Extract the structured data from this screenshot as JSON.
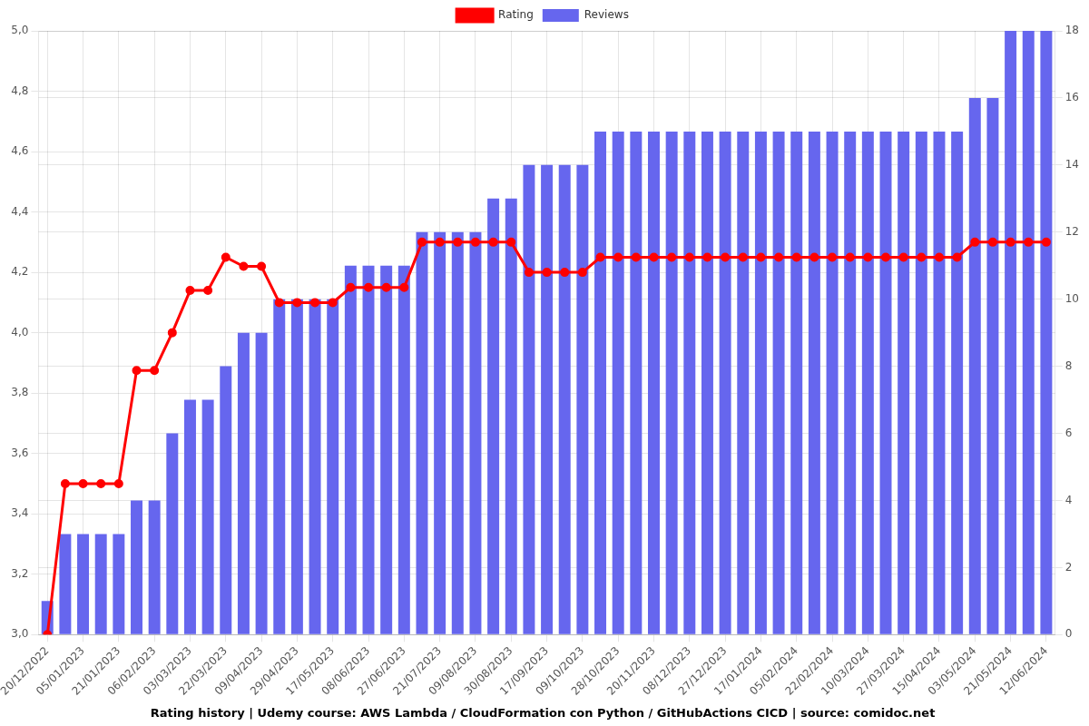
{
  "chart_data": {
    "type": "bar",
    "title": "Rating history | Udemy course: AWS Lambda / CloudFormation con Python / GitHubActions CICD | source: comidoc.net",
    "categories": [
      "20/12/2022",
      null,
      "05/01/2023",
      null,
      "21/01/2023",
      null,
      "06/02/2023",
      null,
      "03/03/2023",
      null,
      "22/03/2023",
      null,
      "09/04/2023",
      null,
      "29/04/2023",
      null,
      "17/05/2023",
      null,
      "08/06/2023",
      null,
      "27/06/2023",
      null,
      "21/07/2023",
      null,
      "09/08/2023",
      null,
      "30/08/2023",
      null,
      "17/09/2023",
      null,
      "09/10/2023",
      null,
      "28/10/2023",
      null,
      "20/11/2023",
      null,
      "08/12/2023",
      null,
      "27/12/2023",
      null,
      "17/01/2024",
      null,
      "05/02/2024",
      null,
      "22/02/2024",
      null,
      "10/03/2024",
      null,
      "27/03/2024",
      null,
      "15/04/2024",
      null,
      "03/05/2024",
      null,
      "21/05/2024",
      null,
      "12/06/2024"
    ],
    "series": [
      {
        "name": "Rating",
        "type": "line",
        "color": "#ff0000",
        "marker": "circle",
        "line_style": "solid",
        "axis": "y",
        "values": [
          3.0,
          3.5,
          3.5,
          3.5,
          3.5,
          3.875,
          3.875,
          4.0,
          4.14,
          4.14,
          4.25,
          4.22,
          4.22,
          4.1,
          4.1,
          4.1,
          4.1,
          4.15,
          4.15,
          4.15,
          4.15,
          4.3,
          4.3,
          4.3,
          4.3,
          4.3,
          4.3,
          4.2,
          4.2,
          4.2,
          4.2,
          4.25,
          4.25,
          4.25,
          4.25,
          4.25,
          4.25,
          4.25,
          4.25,
          4.25,
          4.25,
          4.25,
          4.25,
          4.25,
          4.25,
          4.25,
          4.25,
          4.25,
          4.25,
          4.25,
          4.25,
          4.25,
          4.3,
          4.3,
          4.3,
          4.3,
          4.3
        ]
      },
      {
        "name": "Reviews",
        "type": "bar",
        "color": "#6666ee",
        "axis": "y2",
        "values": [
          1,
          3,
          3,
          3,
          3,
          4,
          4,
          6,
          7,
          7,
          8,
          9,
          9,
          10,
          10,
          10,
          10,
          11,
          11,
          11,
          11,
          12,
          12,
          12,
          12,
          13,
          13,
          14,
          14,
          14,
          14,
          15,
          15,
          15,
          15,
          15,
          15,
          15,
          15,
          15,
          15,
          15,
          15,
          15,
          15,
          15,
          15,
          15,
          15,
          15,
          15,
          15,
          16,
          16,
          18,
          18,
          18
        ]
      }
    ],
    "ylim": [
      3.0,
      5.0
    ],
    "yticks": [
      {
        "value": 3.0,
        "label": "3,0"
      },
      {
        "value": 3.2,
        "label": "3,2"
      },
      {
        "value": 3.4,
        "label": "3,4"
      },
      {
        "value": 3.6,
        "label": "3,6"
      },
      {
        "value": 3.8,
        "label": "3,8"
      },
      {
        "value": 4.0,
        "label": "4,0"
      },
      {
        "value": 4.2,
        "label": "4,2"
      },
      {
        "value": 4.4,
        "label": "4,4"
      },
      {
        "value": 4.6,
        "label": "4,6"
      },
      {
        "value": 4.8,
        "label": "4,8"
      },
      {
        "value": 5.0,
        "label": "5,0"
      }
    ],
    "y2lim": [
      0,
      18
    ],
    "y2ticks": [
      0,
      2,
      4,
      6,
      8,
      10,
      12,
      14,
      16,
      18
    ],
    "grid": true,
    "legend": "top"
  }
}
